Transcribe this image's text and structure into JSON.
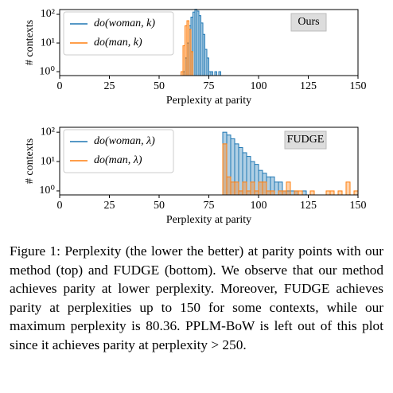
{
  "chart_data": [
    {
      "type": "histogram",
      "annotation": "Ours",
      "xlabel": "Perplexity at parity",
      "ylabel": "# contexts",
      "xlim": [
        0,
        150
      ],
      "xticks": [
        0,
        25,
        50,
        75,
        100,
        125,
        150
      ],
      "ylim": [
        0.73,
        147
      ],
      "log_y": true,
      "yticks": [
        {
          "value": 1,
          "label": "10⁰"
        },
        {
          "value": 10,
          "label": "10¹"
        },
        {
          "value": 100,
          "label": "10²"
        }
      ],
      "legend": "upper left",
      "bins": [
        60,
        61,
        62,
        63,
        64,
        65,
        66,
        67,
        68,
        69,
        70,
        71,
        72,
        73,
        74,
        75,
        76,
        77,
        78,
        79,
        80,
        81
      ],
      "series": [
        {
          "name": "do(woman, k)",
          "color": "#1f77b4",
          "values": [
            0,
            0,
            1,
            3,
            10,
            40,
            80,
            120,
            150,
            130,
            90,
            50,
            20,
            6,
            3,
            1,
            1,
            0,
            1,
            0,
            1
          ]
        },
        {
          "name": "do(man, k)",
          "color": "#ff7f0e",
          "values": [
            0,
            1,
            8,
            40,
            60,
            30,
            5,
            0,
            0,
            0,
            0,
            0,
            0,
            0,
            0,
            0,
            0,
            0,
            0,
            0,
            0
          ]
        }
      ]
    },
    {
      "type": "histogram",
      "annotation": "FUDGE",
      "xlabel": "Perplexity at parity",
      "ylabel": "# contexts",
      "xlim": [
        0,
        150
      ],
      "xticks": [
        0,
        25,
        50,
        75,
        100,
        125,
        150
      ],
      "ylim": [
        0.73,
        147
      ],
      "log_y": true,
      "yticks": [
        {
          "value": 1,
          "label": "10⁰"
        },
        {
          "value": 10,
          "label": "10¹"
        },
        {
          "value": 100,
          "label": "10²"
        }
      ],
      "legend": "upper left",
      "bins": [
        80,
        82,
        84,
        86,
        88,
        90,
        92,
        94,
        96,
        98,
        100,
        102,
        104,
        106,
        108,
        110,
        112,
        114,
        116,
        118,
        120,
        122,
        124,
        126,
        128,
        130,
        132,
        134,
        136,
        138,
        140,
        142,
        144,
        146,
        148,
        150
      ],
      "series": [
        {
          "name": "do(woman, λ)",
          "color": "#1f77b4",
          "values": [
            0,
            100,
            80,
            60,
            40,
            30,
            20,
            15,
            10,
            8,
            5,
            4,
            3,
            3,
            2,
            2,
            1,
            1,
            1,
            1,
            0,
            1,
            0,
            0,
            0,
            0,
            0,
            0,
            0,
            0,
            0,
            0,
            0,
            0,
            0
          ]
        },
        {
          "name": "do(man, λ)",
          "color": "#ff7f0e",
          "values": [
            0,
            40,
            3,
            2,
            2,
            1,
            2,
            1,
            2,
            1,
            2,
            2,
            1,
            1,
            0,
            1,
            1,
            2,
            0,
            1,
            1,
            0,
            0,
            1,
            0,
            0,
            0,
            1,
            1,
            0,
            1,
            0,
            2,
            0,
            1
          ]
        }
      ]
    }
  ],
  "caption": "Figure 1: Perplexity (the lower the better) at parity points with our method (top) and FUDGE (bottom). We observe that our method achieves parity at lower perplexity. Moreover, FUDGE achieves parity at perplexities up to 150 for some contexts, while our maximum perplexity is 80.36. PPLM-BoW is left out of this plot since it achieves parity at perplexity > 250."
}
